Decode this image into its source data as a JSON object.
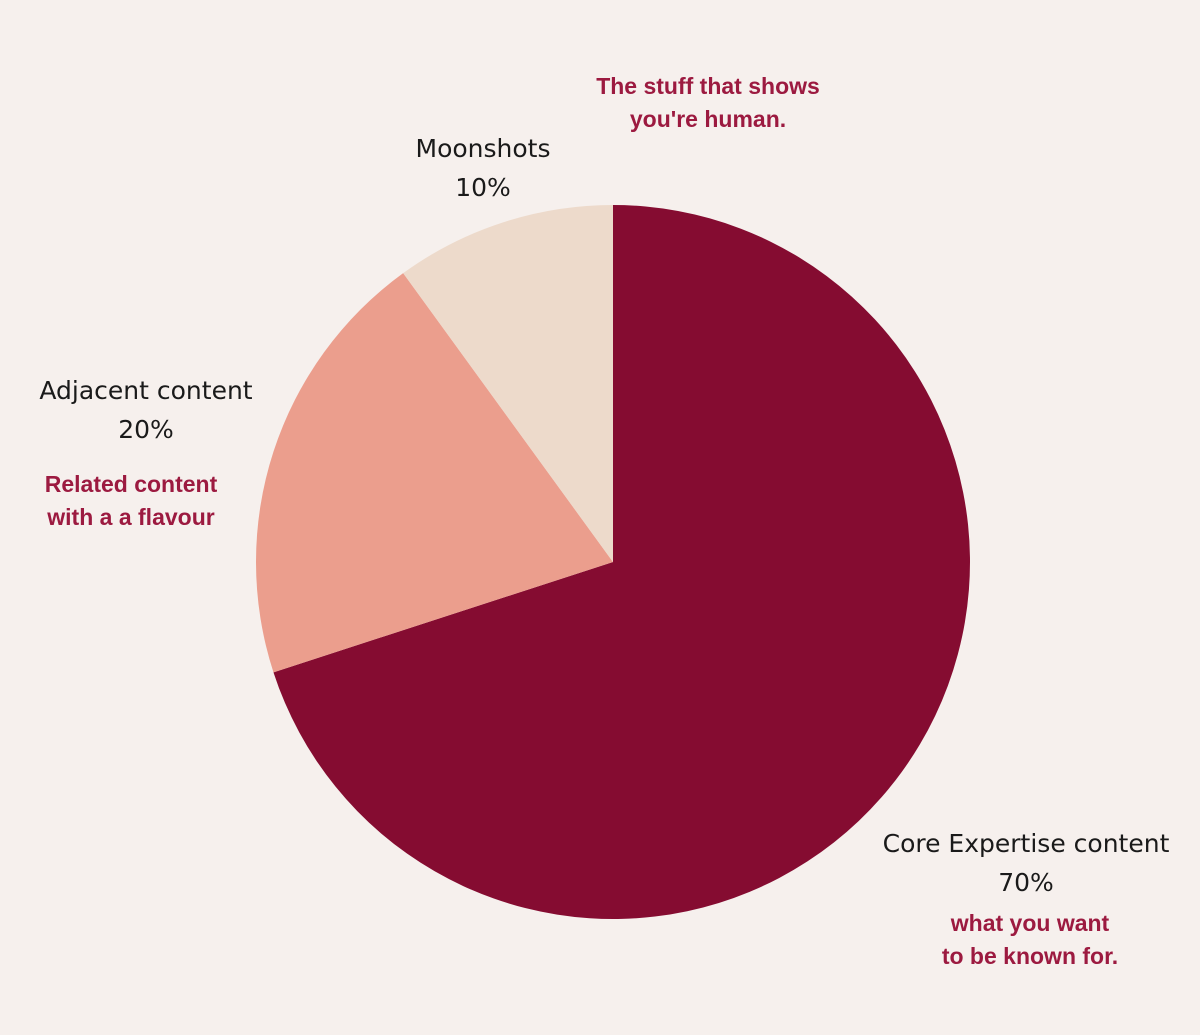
{
  "chart_data": {
    "type": "pie",
    "start_angle": "12 o'clock",
    "direction": "clockwise",
    "slices": [
      {
        "label": "Core Expertise content",
        "value": 70,
        "display": "70%",
        "color": "#850c31"
      },
      {
        "label": "Adjacent content",
        "value": 20,
        "display": "20%",
        "color": "#eb9e8d"
      },
      {
        "label": "Moonshots",
        "value": 10,
        "display": "10%",
        "color": "#eddacb"
      }
    ]
  },
  "annotations": {
    "moonshots": [
      "The stuff that shows",
      "you're human."
    ],
    "adjacent": [
      "Related content",
      "with a a flavour"
    ],
    "core": [
      "what you want",
      "to be known for."
    ]
  },
  "colors": {
    "background": "#f6f0ed",
    "annotation_text": "#9c1a40",
    "label_text": "#1a1a1a"
  }
}
